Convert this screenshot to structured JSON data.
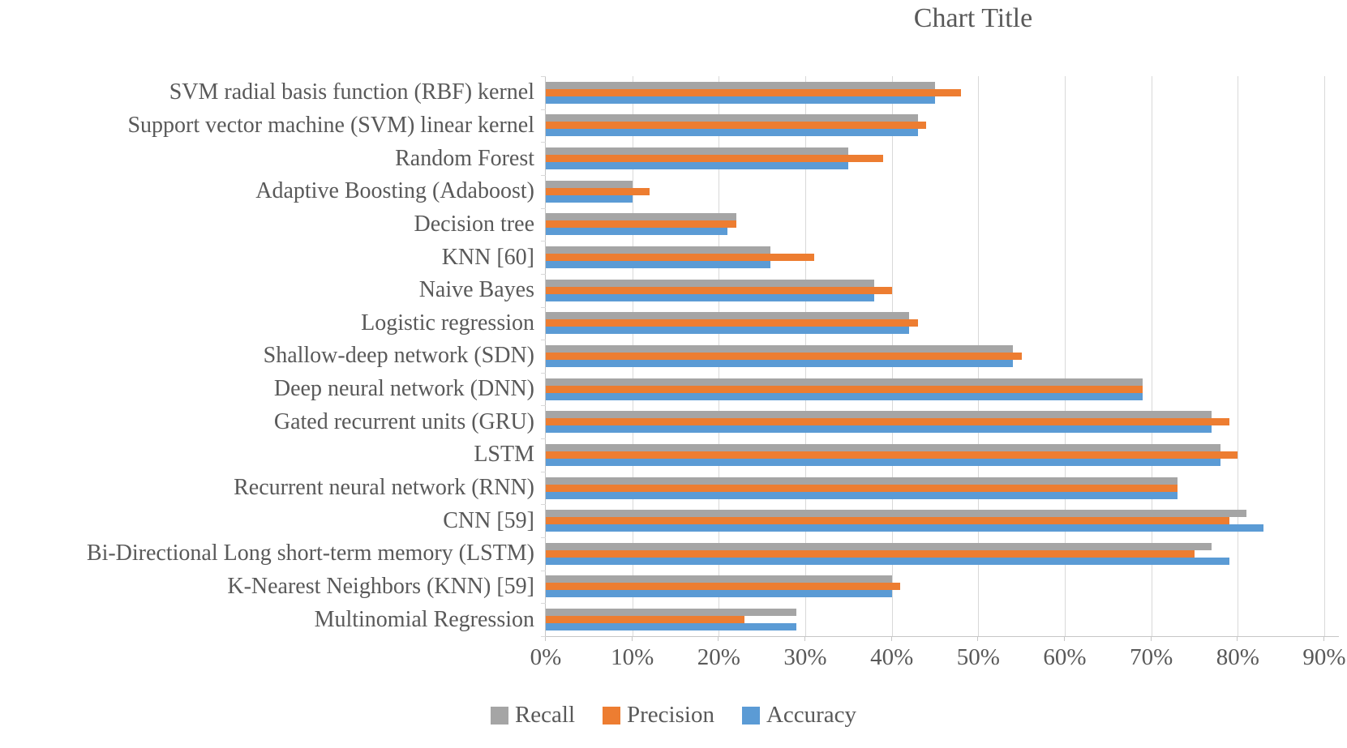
{
  "chart_data": {
    "type": "bar",
    "orientation": "horizontal",
    "title": "Chart Title",
    "categories": [
      "SVM radial basis function (RBF) kernel",
      "Support vector machine (SVM) linear kernel",
      "Random Forest",
      "Adaptive Boosting (Adaboost)",
      "Decision tree",
      "KNN [60]",
      "Naive Bayes",
      "Logistic regression",
      "Shallow-deep network (SDN)",
      "Deep neural network  (DNN)",
      "Gated recurrent units (GRU)",
      "LSTM",
      "Recurrent neural network (RNN)",
      "CNN [59]",
      "Bi-Directional Long short-term memory (LSTM)",
      "K-Nearest Neighbors (KNN) [59]",
      "Multinomial Regression"
    ],
    "series": [
      {
        "name": "Recall",
        "color": "#A5A5A5",
        "values": [
          45,
          43,
          35,
          10,
          22,
          26,
          38,
          42,
          54,
          69,
          77,
          78,
          73,
          81,
          77,
          40,
          29
        ]
      },
      {
        "name": "Precision",
        "color": "#ED7D31",
        "values": [
          48,
          44,
          39,
          12,
          22,
          31,
          40,
          43,
          55,
          69,
          79,
          80,
          73,
          79,
          75,
          41,
          23
        ]
      },
      {
        "name": "Accuracy",
        "color": "#5B9BD5",
        "values": [
          45,
          43,
          35,
          10,
          21,
          26,
          38,
          42,
          54,
          69,
          77,
          78,
          73,
          83,
          79,
          40,
          29
        ]
      }
    ],
    "x_axis": {
      "min": 0,
      "max": 90,
      "tick_step": 10,
      "unit": "%",
      "tick_labels": [
        "0%",
        "10%",
        "20%",
        "30%",
        "40%",
        "50%",
        "60%",
        "70%",
        "80%",
        "90%"
      ]
    },
    "legend": {
      "position": "bottom",
      "entries": [
        "Recall",
        "Precision",
        "Accuracy"
      ]
    },
    "grid": "vertical-major"
  },
  "colors": {
    "text": "#595959",
    "gridline": "#D9D9D9",
    "axis_line": "#C6C6C6",
    "background": "#FFFFFF"
  }
}
